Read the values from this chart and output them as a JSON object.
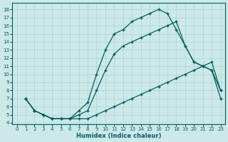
{
  "xlabel": "Humidex (Indice chaleur)",
  "background_color": "#cce8e8",
  "grid_color": "#aad4d4",
  "line_color": "#006060",
  "xlim": [
    -0.5,
    23.5
  ],
  "ylim": [
    3.8,
    18.8
  ],
  "xticks": [
    0,
    1,
    2,
    3,
    4,
    5,
    6,
    7,
    8,
    9,
    10,
    11,
    12,
    13,
    14,
    15,
    16,
    17,
    18,
    19,
    20,
    21,
    22,
    23
  ],
  "yticks": [
    4,
    5,
    6,
    7,
    8,
    9,
    10,
    11,
    12,
    13,
    14,
    15,
    16,
    17,
    18
  ],
  "line_top_x": [
    1,
    2,
    3,
    4,
    5,
    6,
    7,
    8,
    9,
    10,
    11,
    12,
    13,
    14,
    15,
    16,
    17,
    18,
    19,
    20,
    21,
    22,
    23
  ],
  "line_top_y": [
    7.0,
    5.5,
    5.0,
    4.5,
    4.5,
    4.5,
    5.5,
    6.5,
    10.0,
    13.0,
    15.0,
    15.5,
    16.5,
    17.0,
    17.5,
    18.0,
    17.5,
    15.5,
    13.5,
    11.5,
    11.0,
    10.5,
    7.0
  ],
  "line_mid_x": [
    1,
    2,
    3,
    4,
    5,
    6,
    7,
    8,
    9,
    10,
    11,
    12,
    13,
    14,
    15,
    16,
    17,
    18,
    19,
    20,
    21,
    22,
    23
  ],
  "line_mid_y": [
    7.0,
    5.5,
    5.0,
    4.5,
    4.5,
    4.5,
    5.0,
    5.5,
    8.0,
    10.5,
    12.5,
    13.5,
    14.0,
    14.5,
    15.0,
    15.5,
    16.0,
    16.5,
    13.5,
    11.5,
    11.0,
    10.5,
    8.0
  ],
  "line_bot_x": [
    1,
    2,
    3,
    4,
    5,
    6,
    7,
    8,
    9,
    10,
    11,
    12,
    13,
    14,
    15,
    16,
    17,
    18,
    19,
    20,
    21,
    22,
    23
  ],
  "line_bot_y": [
    7.0,
    5.5,
    5.0,
    4.5,
    4.5,
    4.5,
    4.5,
    4.5,
    5.0,
    5.5,
    6.0,
    6.5,
    7.0,
    7.5,
    8.0,
    8.5,
    9.0,
    9.5,
    10.0,
    10.5,
    11.0,
    11.5,
    8.0
  ]
}
